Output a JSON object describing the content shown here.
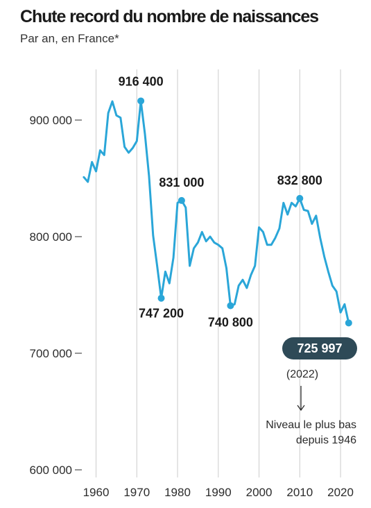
{
  "chart_data": {
    "type": "line",
    "title": "Chute record du nombre de naissances",
    "subtitle": "Par an, en France*",
    "xlim": [
      1956,
      2024
    ],
    "ylim": [
      600000,
      916400
    ],
    "y_ticks": [
      600000,
      700000,
      800000,
      900000
    ],
    "y_tick_labels": [
      "600 000",
      "700 000",
      "800 000",
      "900 000"
    ],
    "x_ticks": [
      1960,
      1970,
      1980,
      1990,
      2000,
      2010,
      2020
    ],
    "x_tick_labels": [
      "1960",
      "1970",
      "1980",
      "1990",
      "2000",
      "2010",
      "2020"
    ],
    "grid": "vertical",
    "line_color": "#2aa6d8",
    "series": [
      {
        "x": [
          1957,
          1958,
          1959,
          1960,
          1961,
          1962,
          1963,
          1964,
          1965,
          1966,
          1967,
          1968,
          1969,
          1970,
          1971,
          1972,
          1973,
          1974,
          1975,
          1976,
          1977,
          1978,
          1979,
          1980,
          1981,
          1982,
          1983,
          1984,
          1985,
          1986,
          1987,
          1988,
          1989,
          1990,
          1991,
          1992,
          1993,
          1994,
          1995,
          1996,
          1997,
          1998,
          1999,
          2000,
          2001,
          2002,
          2003,
          2004,
          2005,
          2006,
          2007,
          2008,
          2009,
          2010,
          2011,
          2012,
          2013,
          2014,
          2015,
          2016,
          2017,
          2018,
          2019,
          2020,
          2021,
          2022
        ],
        "values": [
          851000,
          847000,
          864000,
          856000,
          874000,
          870000,
          906000,
          916000,
          904000,
          902000,
          877000,
          872000,
          876000,
          882000,
          916400,
          888000,
          852000,
          801000,
          775000,
          747200,
          770000,
          760000,
          782000,
          829000,
          831000,
          825000,
          775000,
          790000,
          795000,
          804000,
          796000,
          800000,
          795000,
          793000,
          790000,
          773000,
          740800,
          742000,
          758000,
          763000,
          756000,
          767000,
          775000,
          808000,
          804000,
          793000,
          793000,
          799000,
          807000,
          829000,
          819000,
          829000,
          826000,
          832800,
          823000,
          822000,
          811000,
          818000,
          799000,
          783000,
          770000,
          758000,
          753000,
          735000,
          742000,
          725997
        ]
      }
    ],
    "annotations": [
      {
        "x": 1971,
        "y": 916400,
        "label": "916 400"
      },
      {
        "x": 1976,
        "y": 747200,
        "label": "747 200"
      },
      {
        "x": 1981,
        "y": 831000,
        "label": "831 000"
      },
      {
        "x": 1993,
        "y": 740800,
        "label": "740 800"
      },
      {
        "x": 2010,
        "y": 832800,
        "label": "832 800"
      }
    ],
    "highlight": {
      "x": 2022,
      "y": 725997,
      "label": "725 997",
      "year_label": "(2022)",
      "badge_color": "#2e4a57"
    },
    "note": {
      "line1": "Niveau le plus bas",
      "line2": "depuis 1946"
    },
    "colors": {
      "line": "#2aa6d8",
      "grid": "#cccccc",
      "badge": "#2e4a57",
      "text": "#1a1a1a"
    }
  }
}
